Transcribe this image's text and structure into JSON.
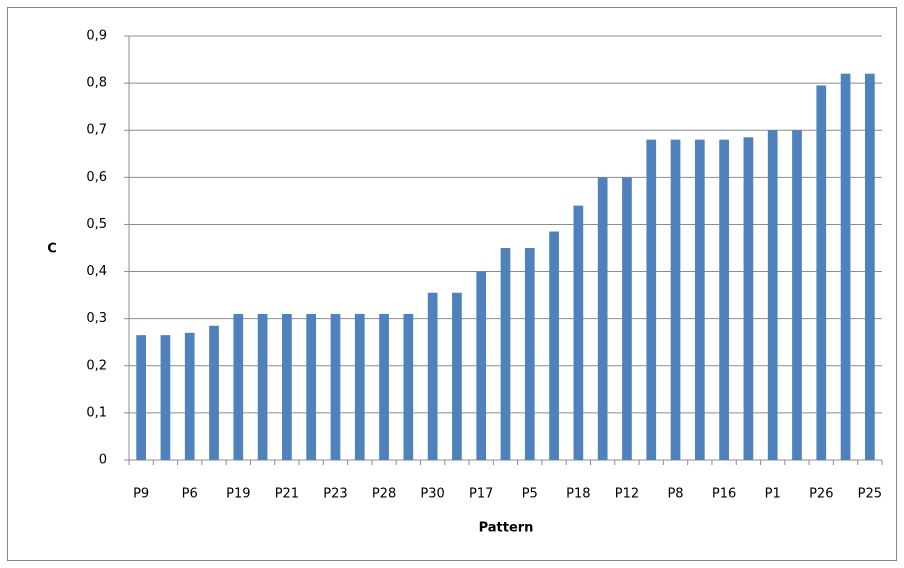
{
  "chart_data": {
    "type": "bar",
    "categories": [
      "P9",
      null,
      "P6",
      null,
      "P19",
      null,
      "P21",
      null,
      "P23",
      null,
      "P28",
      null,
      "P30",
      null,
      "P17",
      null,
      "P5",
      null,
      "P18",
      null,
      "P12",
      null,
      "P8",
      null,
      "P16",
      null,
      "P1",
      null,
      "P26",
      null,
      "P25"
    ],
    "values": [
      0.265,
      0.265,
      0.27,
      0.285,
      0.31,
      0.31,
      0.31,
      0.31,
      0.31,
      0.31,
      0.31,
      0.31,
      0.355,
      0.355,
      0.4,
      0.45,
      0.45,
      0.485,
      0.54,
      0.6,
      0.6,
      0.68,
      0.68,
      0.68,
      0.68,
      0.685,
      0.7,
      0.7,
      0.795,
      0.82,
      0.82
    ],
    "color": "#4f81bd",
    "x_label": "Pattern",
    "y_label": "C",
    "ylim": [
      0,
      0.9
    ],
    "yticks": [
      0,
      {
        "value": 0.1,
        "label": "0,1"
      },
      {
        "value": 0.2,
        "label": "0,2"
      },
      {
        "value": 0.3,
        "label": "0,3"
      },
      {
        "value": 0.4,
        "label": "0,4"
      },
      {
        "value": 0.5,
        "label": "0,5"
      },
      {
        "value": 0.6,
        "label": "0,6"
      },
      {
        "value": 0.7,
        "label": "0,7"
      },
      {
        "value": 0.8,
        "label": "0,8"
      },
      {
        "value": 0.9,
        "label": "0,9"
      }
    ],
    "grid": true
  }
}
